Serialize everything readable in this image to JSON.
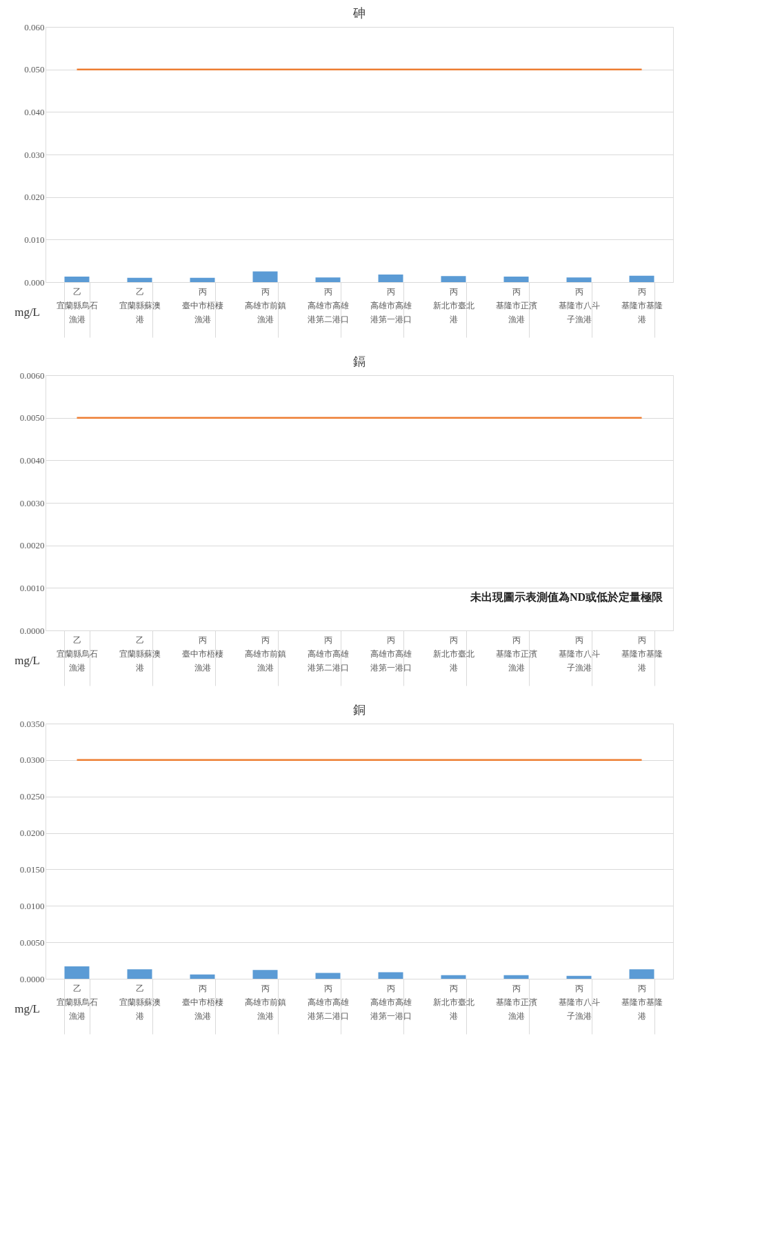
{
  "chart_data": [
    {
      "type": "bar",
      "title": "砷",
      "ylabel": "mg/L",
      "categories": [
        "乙宜蘭縣烏石漁港",
        "乙宜蘭縣蘇澳港",
        "丙臺中市梧棲漁港",
        "丙高雄市前鎮漁港",
        "丙高雄市高雄港第二港口",
        "丙高雄市高雄港第一港口",
        "丙新北市臺北港",
        "丙基隆市正濱漁港",
        "丙基隆市八斗子漁港",
        "丙基隆市基隆港"
      ],
      "series": [
        {
          "color": "#5b9bd5",
          "values": [
            0.0013,
            0.001,
            0.001,
            0.0025,
            0.0011,
            0.0018,
            0.0014,
            0.0013,
            0.0011,
            0.0015
          ]
        }
      ],
      "ylim": [
        0,
        0.06
      ],
      "yticks": [
        {
          "value": 0,
          "label": "0.000"
        },
        {
          "value": 0.01,
          "label": "0.010"
        },
        {
          "value": 0.02,
          "label": "0.020"
        },
        {
          "value": 0.03,
          "label": "0.030"
        },
        {
          "value": 0.04,
          "label": "0.040"
        },
        {
          "value": 0.05,
          "label": "0.050"
        },
        {
          "value": 0.06,
          "label": "0.060"
        }
      ],
      "ref_lines": [
        {
          "axis": "y",
          "value": 0.05,
          "color": "#ed7d31"
        }
      ],
      "grid": "y"
    },
    {
      "type": "bar",
      "title": "鎘",
      "ylabel": "mg/L",
      "categories": [
        "乙宜蘭縣烏石漁港",
        "乙宜蘭縣蘇澳港",
        "丙臺中市梧棲漁港",
        "丙高雄市前鎮漁港",
        "丙高雄市高雄港第二港口",
        "丙高雄市高雄港第一港口",
        "丙新北市臺北港",
        "丙基隆市正濱漁港",
        "丙基隆市八斗子漁港",
        "丙基隆市基隆港"
      ],
      "series": [
        {
          "color": "#5b9bd5",
          "values": [
            null,
            null,
            null,
            null,
            null,
            null,
            null,
            null,
            null,
            null
          ]
        }
      ],
      "ylim": [
        0,
        0.006
      ],
      "yticks": [
        {
          "value": 0,
          "label": "0.0000"
        },
        {
          "value": 0.001,
          "label": "0.0010"
        },
        {
          "value": 0.002,
          "label": "0.0020"
        },
        {
          "value": 0.003,
          "label": "0.0030"
        },
        {
          "value": 0.004,
          "label": "0.0040"
        },
        {
          "value": 0.005,
          "label": "0.0050"
        },
        {
          "value": 0.006,
          "label": "0.0060"
        }
      ],
      "ref_lines": [
        {
          "axis": "y",
          "value": 0.005,
          "color": "#ed7d31"
        }
      ],
      "grid": "y",
      "annotations": [
        "未出現圖示表測值為ND或低於定量極限"
      ]
    },
    {
      "type": "bar",
      "title": "銅",
      "ylabel": "mg/L",
      "categories": [
        "乙宜蘭縣烏石漁港",
        "乙宜蘭縣蘇澳港",
        "丙臺中市梧棲漁港",
        "丙高雄市前鎮漁港",
        "丙高雄市高雄港第二港口",
        "丙高雄市高雄港第一港口",
        "丙新北市臺北港",
        "丙基隆市正濱漁港",
        "丙基隆市八斗子漁港",
        "丙基隆市基隆港"
      ],
      "series": [
        {
          "color": "#5b9bd5",
          "values": [
            0.0017,
            0.0013,
            0.0006,
            0.0012,
            0.0008,
            0.0009,
            0.0005,
            0.0005,
            0.0004,
            0.0013
          ]
        }
      ],
      "ylim": [
        0,
        0.035
      ],
      "yticks": [
        {
          "value": 0,
          "label": "0.0000"
        },
        {
          "value": 0.005,
          "label": "0.0050"
        },
        {
          "value": 0.01,
          "label": "0.0100"
        },
        {
          "value": 0.015,
          "label": "0.0150"
        },
        {
          "value": 0.02,
          "label": "0.0200"
        },
        {
          "value": 0.025,
          "label": "0.0250"
        },
        {
          "value": 0.03,
          "label": "0.0300"
        },
        {
          "value": 0.035,
          "label": "0.0350"
        }
      ],
      "ref_lines": [
        {
          "axis": "y",
          "value": 0.03,
          "color": "#ed7d31"
        }
      ],
      "grid": "y"
    }
  ]
}
